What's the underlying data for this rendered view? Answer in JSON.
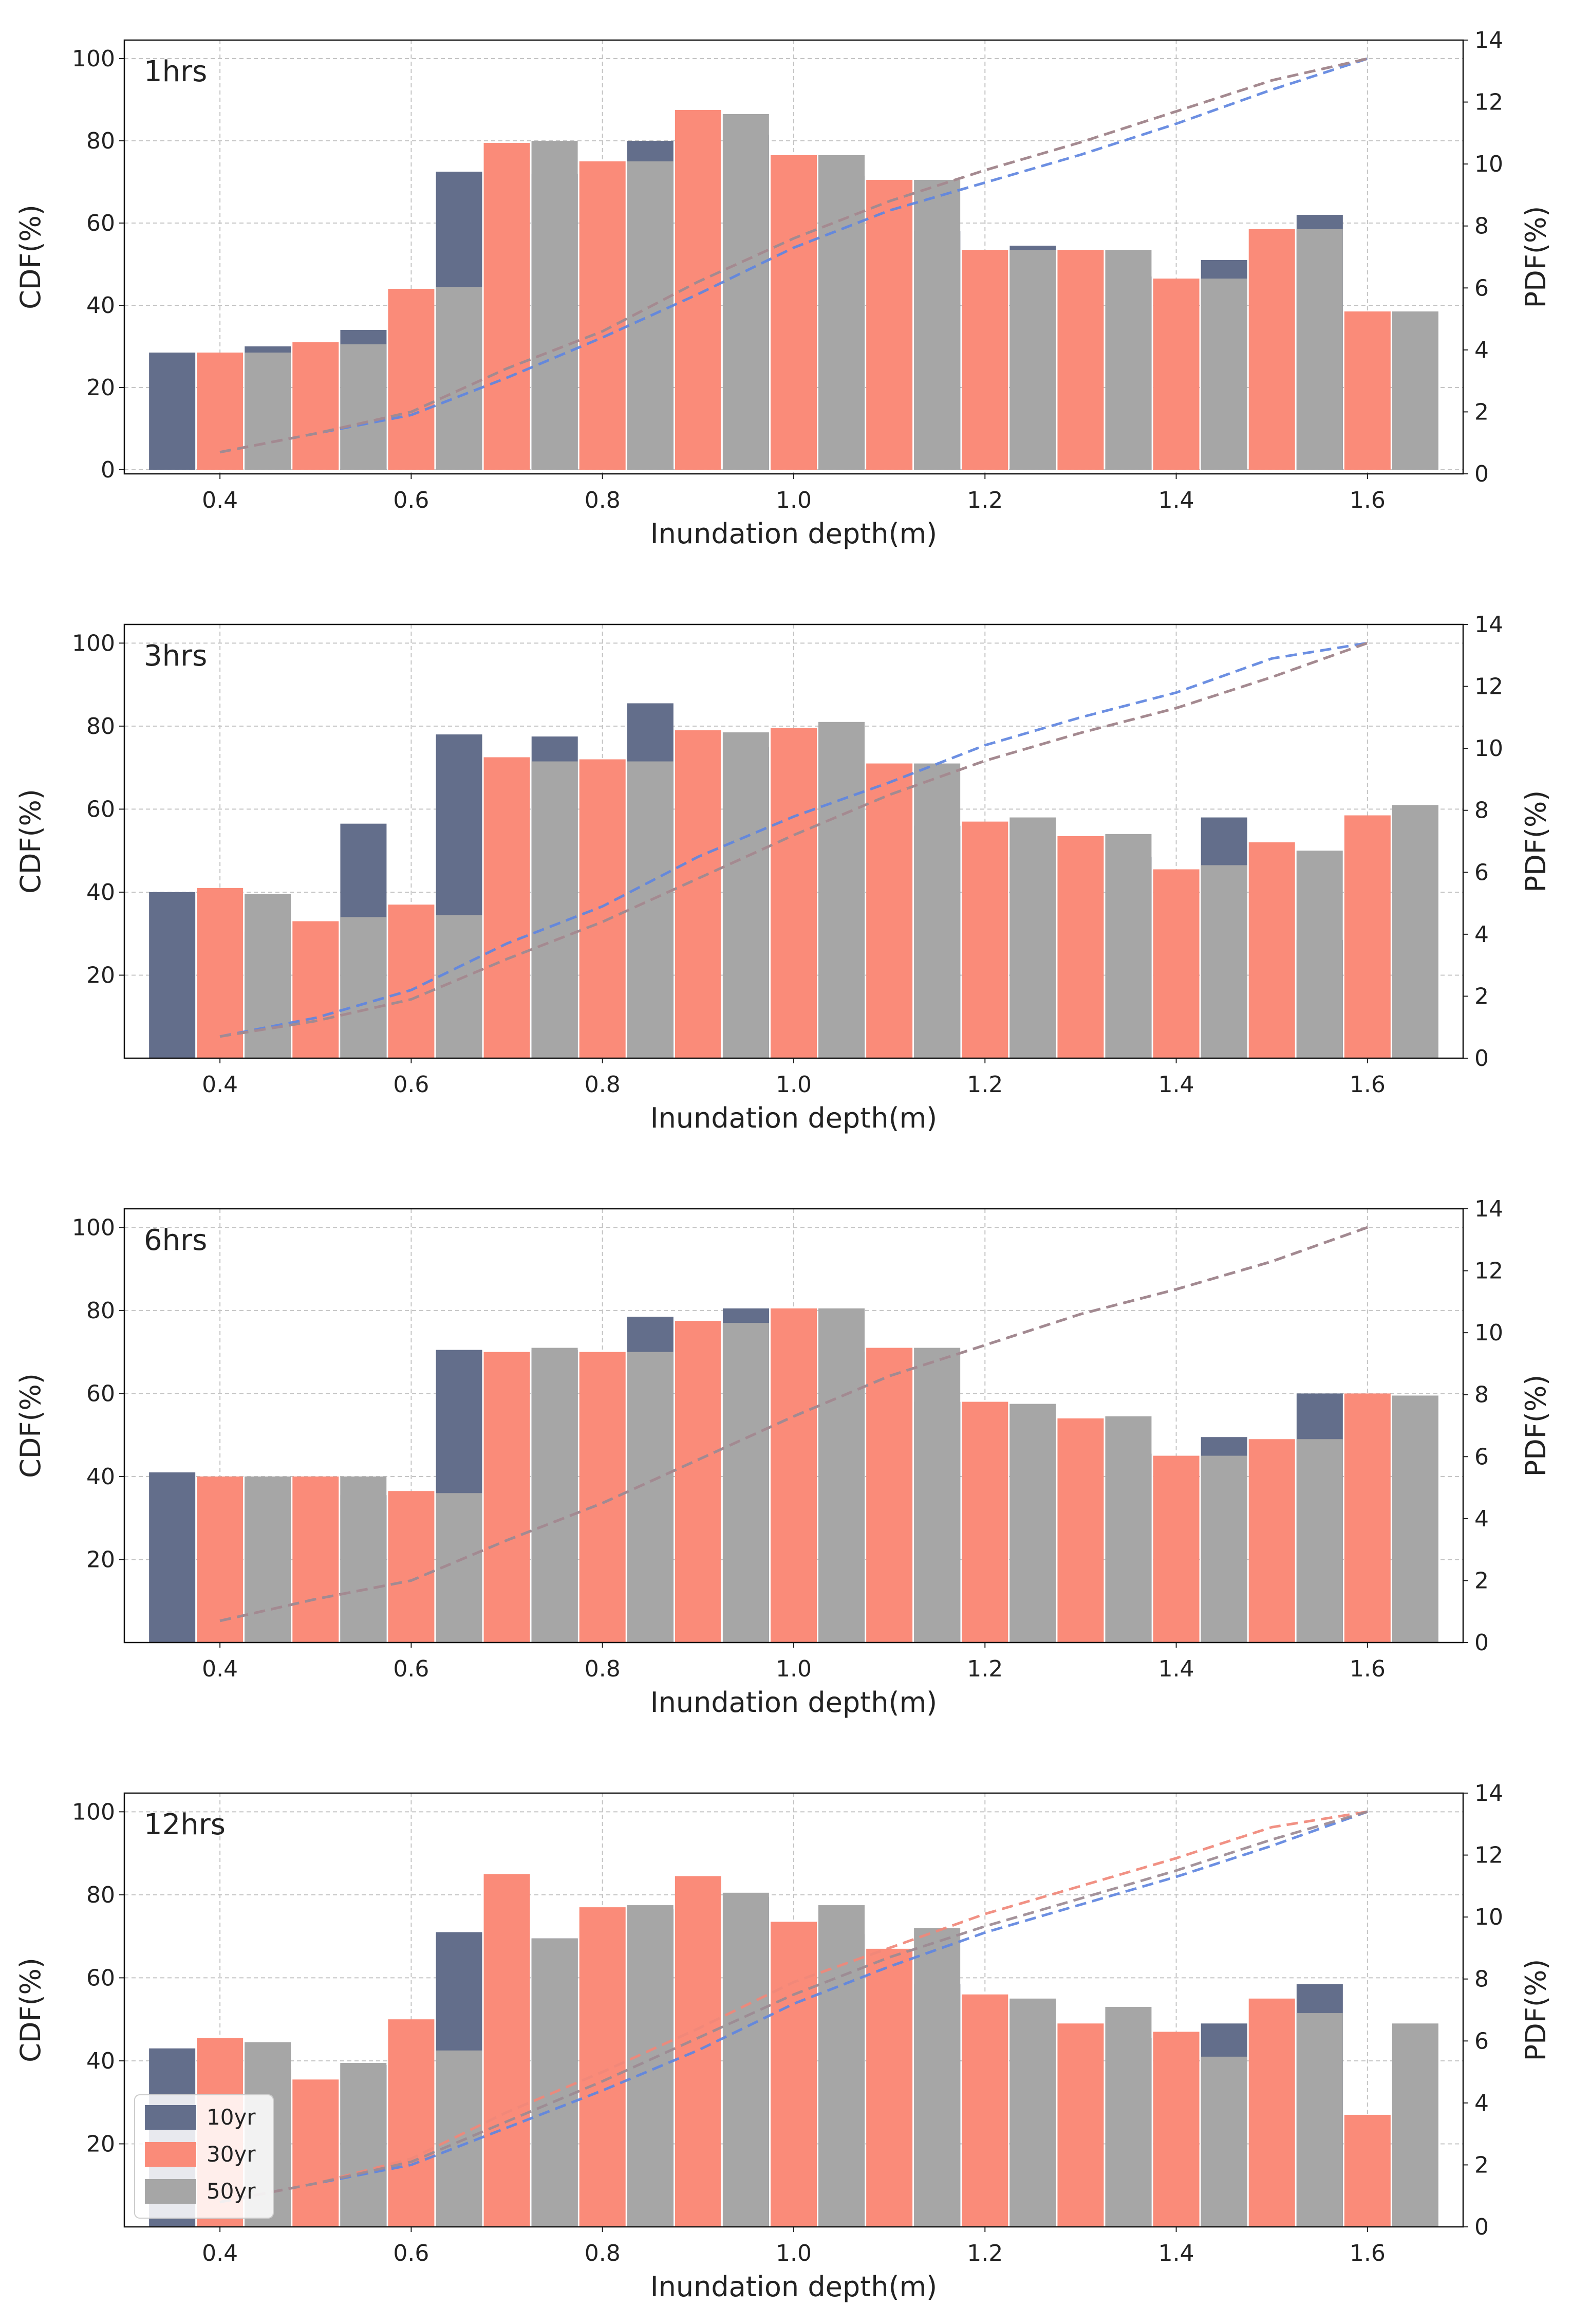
{
  "colors": {
    "s10": "#636e8b",
    "s30": "#fa8b79",
    "s50": "#a6a6a6",
    "cdf10": "#5f86e0",
    "cdf30": "#f0887a",
    "cdf50": "#9c8a92",
    "grid": "#c4c4c4"
  },
  "legend": {
    "items": [
      {
        "label": "10yr",
        "color_key": "s10"
      },
      {
        "label": "30yr",
        "color_key": "s30"
      },
      {
        "label": "50yr",
        "color_key": "s50"
      }
    ],
    "placement": "lower-left of bottom panel"
  },
  "chart_data": [
    {
      "type": "bar",
      "title": "1hrs",
      "xlabel": "Inundation depth(m)",
      "ylabel_left": "CDF(%)",
      "ylabel_right": "PDF(%)",
      "categories": [
        0.4,
        0.5,
        0.6,
        0.7,
        0.8,
        0.9,
        1.0,
        1.1,
        1.2,
        1.3,
        1.4,
        1.5,
        1.6
      ],
      "x_ticks": [
        "0.4",
        "0.6",
        "0.8",
        "1.0",
        "1.2",
        "1.4",
        "1.6"
      ],
      "left_ticks": [
        "0",
        "20",
        "40",
        "60",
        "80",
        "100"
      ],
      "right_ticks": [
        "0",
        "2",
        "4",
        "6",
        "8",
        "10",
        "12",
        "14"
      ],
      "left_ylim": [
        -1,
        104.5
      ],
      "right_ylim": [
        0,
        14
      ],
      "series": [
        {
          "name": "10yr",
          "values": [
            28.5,
            30.0,
            34.0,
            72.5,
            72.0,
            80.0,
            81.5,
            71.5,
            58.0,
            54.5,
            47.0,
            51.0,
            62.0
          ]
        },
        {
          "name": "30yr",
          "values": [
            28.5,
            31.0,
            44.0,
            79.5,
            75.0,
            87.5,
            76.5,
            70.5,
            53.5,
            53.5,
            46.5,
            58.5,
            38.5
          ]
        },
        {
          "name": "50yr",
          "values": [
            28.5,
            30.5,
            44.5,
            80.0,
            75.0,
            86.5,
            76.5,
            70.5,
            53.5,
            53.5,
            46.5,
            58.5,
            38.5
          ]
        }
      ],
      "cdf_series": [
        {
          "name": "10yr",
          "pdf_values": [
            0.7,
            1.3,
            1.9,
            3.1,
            4.4,
            5.8,
            7.3,
            8.5,
            9.4,
            10.3,
            11.3,
            12.4,
            13.4
          ]
        },
        {
          "name": "30yr",
          "pdf_values": [
            0.7,
            1.3,
            2.0,
            3.4,
            4.6,
            6.2,
            7.6,
            8.8,
            9.8,
            10.7,
            11.7,
            12.7,
            13.4
          ]
        },
        {
          "name": "50yr",
          "pdf_values": [
            0.7,
            1.3,
            2.0,
            3.4,
            4.6,
            6.2,
            7.6,
            8.8,
            9.8,
            10.7,
            11.7,
            12.7,
            13.4
          ]
        }
      ]
    },
    {
      "type": "bar",
      "title": "3hrs",
      "xlabel": "Inundation depth(m)",
      "ylabel_left": "CDF(%)",
      "ylabel_right": "PDF(%)",
      "categories": [
        0.4,
        0.5,
        0.6,
        0.7,
        0.8,
        0.9,
        1.0,
        1.1,
        1.2,
        1.3,
        1.4,
        1.5,
        1.6
      ],
      "x_ticks": [
        "0.4",
        "0.6",
        "0.8",
        "1.0",
        "1.2",
        "1.4",
        "1.6"
      ],
      "left_ticks": [
        "20",
        "40",
        "60",
        "80",
        "100"
      ],
      "right_ticks": [
        "0",
        "2",
        "4",
        "6",
        "8",
        "10",
        "12",
        "14"
      ],
      "left_ylim": [
        0,
        104.5
      ],
      "right_ylim": [
        0,
        14
      ],
      "series": [
        {
          "name": "10yr",
          "values": [
            40.0,
            30.5,
            56.5,
            78.0,
            77.5,
            85.5,
            75.0,
            67.0,
            56.0,
            48.5,
            48.5,
            58.0,
            28.5
          ]
        },
        {
          "name": "30yr",
          "values": [
            41.0,
            33.0,
            37.0,
            72.5,
            72.0,
            79.0,
            79.5,
            71.0,
            57.0,
            53.5,
            45.5,
            52.0,
            58.5
          ]
        },
        {
          "name": "50yr",
          "values": [
            39.5,
            34.0,
            34.5,
            71.5,
            71.5,
            78.5,
            81.0,
            71.0,
            58.0,
            54.0,
            46.5,
            50.0,
            61.0
          ]
        }
      ],
      "cdf_series": [
        {
          "name": "10yr",
          "pdf_values": [
            0.7,
            1.3,
            2.2,
            3.7,
            4.9,
            6.5,
            7.8,
            8.9,
            10.1,
            11.0,
            11.8,
            12.9,
            13.4
          ]
        },
        {
          "name": "30yr",
          "pdf_values": [
            0.7,
            1.2,
            1.9,
            3.2,
            4.4,
            5.8,
            7.2,
            8.5,
            9.6,
            10.5,
            11.3,
            12.3,
            13.4
          ]
        },
        {
          "name": "50yr",
          "pdf_values": [
            0.7,
            1.2,
            1.9,
            3.2,
            4.4,
            5.8,
            7.2,
            8.5,
            9.6,
            10.5,
            11.3,
            12.3,
            13.4
          ]
        }
      ]
    },
    {
      "type": "bar",
      "title": "6hrs",
      "xlabel": "Inundation depth(m)",
      "ylabel_left": "CDF(%)",
      "ylabel_right": "PDF(%)",
      "categories": [
        0.4,
        0.5,
        0.6,
        0.7,
        0.8,
        0.9,
        1.0,
        1.1,
        1.2,
        1.3,
        1.4,
        1.5,
        1.6
      ],
      "x_ticks": [
        "0.4",
        "0.6",
        "0.8",
        "1.0",
        "1.2",
        "1.4",
        "1.6"
      ],
      "left_ticks": [
        "20",
        "40",
        "60",
        "80",
        "100"
      ],
      "right_ticks": [
        "0",
        "2",
        "4",
        "6",
        "8",
        "10",
        "12",
        "14"
      ],
      "left_ylim": [
        0,
        104.5
      ],
      "right_ylim": [
        0,
        14
      ],
      "series": [
        {
          "name": "10yr",
          "values": [
            41.0,
            38.5,
            35.5,
            70.5,
            70.5,
            78.5,
            80.5,
            70.0,
            58.0,
            53.5,
            45.5,
            49.5,
            60.0
          ]
        },
        {
          "name": "30yr",
          "values": [
            40.0,
            40.0,
            36.5,
            70.0,
            70.0,
            77.5,
            80.5,
            71.0,
            58.0,
            54.0,
            45.0,
            49.0,
            60.0
          ]
        },
        {
          "name": "50yr",
          "values": [
            40.0,
            40.0,
            36.0,
            71.0,
            70.0,
            77.0,
            80.5,
            71.0,
            57.5,
            54.5,
            45.0,
            49.0,
            59.5
          ]
        }
      ],
      "cdf_series": [
        {
          "name": "10yr",
          "pdf_values": [
            0.7,
            1.4,
            2.0,
            3.3,
            4.5,
            5.9,
            7.3,
            8.6,
            9.6,
            10.6,
            11.4,
            12.3,
            13.4
          ]
        },
        {
          "name": "30yr",
          "pdf_values": [
            0.7,
            1.4,
            2.0,
            3.3,
            4.5,
            5.9,
            7.3,
            8.6,
            9.6,
            10.6,
            11.4,
            12.3,
            13.4
          ]
        },
        {
          "name": "50yr",
          "pdf_values": [
            0.7,
            1.4,
            2.0,
            3.3,
            4.5,
            5.9,
            7.3,
            8.6,
            9.6,
            10.6,
            11.4,
            12.3,
            13.4
          ]
        }
      ]
    },
    {
      "type": "bar",
      "title": "12hrs",
      "xlabel": "Inundation depth(m)",
      "ylabel_left": "CDF(%)",
      "ylabel_right": "PDF(%)",
      "categories": [
        0.4,
        0.5,
        0.6,
        0.7,
        0.8,
        0.9,
        1.0,
        1.1,
        1.2,
        1.3,
        1.4,
        1.5,
        1.6
      ],
      "x_ticks": [
        "0.4",
        "0.6",
        "0.8",
        "1.0",
        "1.2",
        "1.4",
        "1.6"
      ],
      "left_ticks": [
        "20",
        "40",
        "60",
        "80",
        "100"
      ],
      "right_ticks": [
        "0",
        "2",
        "4",
        "6",
        "8",
        "10",
        "12",
        "14"
      ],
      "left_ylim": [
        0,
        104.5
      ],
      "right_ylim": [
        0,
        14
      ],
      "series": [
        {
          "name": "10yr",
          "values": [
            43.0,
            38.0,
            39.0,
            71.0,
            69.5,
            76.5,
            79.5,
            70.5,
            58.5,
            54.5,
            45.5,
            49.0,
            58.5
          ]
        },
        {
          "name": "30yr",
          "values": [
            45.5,
            35.5,
            50.0,
            85.0,
            77.0,
            84.5,
            73.5,
            67.0,
            56.0,
            49.0,
            47.0,
            55.0,
            27.0
          ]
        },
        {
          "name": "50yr",
          "values": [
            44.5,
            39.5,
            42.5,
            69.5,
            77.5,
            80.5,
            77.5,
            72.0,
            55.0,
            53.0,
            41.0,
            51.5,
            49.0
          ]
        }
      ],
      "cdf_series": [
        {
          "name": "10yr",
          "pdf_values": [
            0.8,
            1.4,
            2.0,
            3.2,
            4.4,
            5.7,
            7.2,
            8.4,
            9.5,
            10.4,
            11.3,
            12.3,
            13.4
          ]
        },
        {
          "name": "30yr",
          "pdf_values": [
            0.8,
            1.4,
            2.2,
            3.7,
            5.0,
            6.4,
            7.9,
            9.0,
            10.1,
            11.0,
            11.9,
            12.9,
            13.4
          ]
        },
        {
          "name": "50yr",
          "pdf_values": [
            0.8,
            1.4,
            2.1,
            3.4,
            4.7,
            6.1,
            7.5,
            8.7,
            9.7,
            10.6,
            11.5,
            12.5,
            13.4
          ]
        }
      ]
    }
  ]
}
